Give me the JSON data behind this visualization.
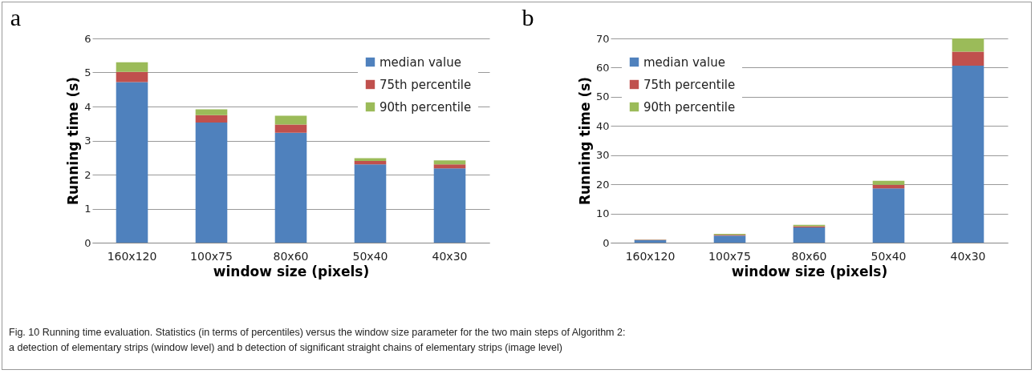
{
  "chart_data": [
    {
      "type": "bar",
      "title": "a",
      "xlabel": "window size (pixels)",
      "ylabel": "Running time (s)",
      "categories": [
        "160x120",
        "100x75",
        "80x60",
        "50x40",
        "40x30"
      ],
      "stacked": true,
      "series": [
        {
          "name": "median value",
          "color": "#4f81bd",
          "values": [
            4.72,
            3.53,
            3.23,
            2.3,
            2.18
          ]
        },
        {
          "name": "75th percentile",
          "color": "#c0504d",
          "values": [
            0.3,
            0.22,
            0.24,
            0.1,
            0.12
          ]
        },
        {
          "name": "90th percentile",
          "color": "#9bbb59",
          "values": [
            0.28,
            0.17,
            0.26,
            0.08,
            0.12
          ]
        }
      ],
      "ylim": [
        0,
        6
      ],
      "yticks": [
        0,
        1,
        2,
        3,
        4,
        5,
        6
      ],
      "grid": "y",
      "legend": "top right",
      "annotations": [
        "Fig. 10 Running time evaluation. Statistics (in terms of percentiles) versus the window size parameter for the two main steps of Algorithm 2:",
        "a detection of elementary strips (window level) and b detection of significant straight chains of elementary strips (image level)"
      ]
    },
    {
      "type": "bar",
      "title": "b",
      "xlabel": "window size (pixels)",
      "ylabel": "Running time (s)",
      "categories": [
        "160x120",
        "100x75",
        "80x60",
        "50x40",
        "40x30"
      ],
      "stacked": true,
      "series": [
        {
          "name": "median value",
          "color": "#4f81bd",
          "values": [
            0.9,
            2.4,
            5.2,
            18.6,
            60.7
          ]
        },
        {
          "name": "75th percentile",
          "color": "#c0504d",
          "values": [
            0.1,
            0.3,
            0.4,
            1.2,
            4.8
          ]
        },
        {
          "name": "90th percentile",
          "color": "#9bbb59",
          "values": [
            0.1,
            0.3,
            0.5,
            1.4,
            4.5
          ]
        }
      ],
      "ylim": [
        0,
        70
      ],
      "yticks": [
        0,
        10,
        20,
        30,
        40,
        50,
        60,
        70
      ],
      "grid": "y",
      "legend": "top left"
    }
  ]
}
